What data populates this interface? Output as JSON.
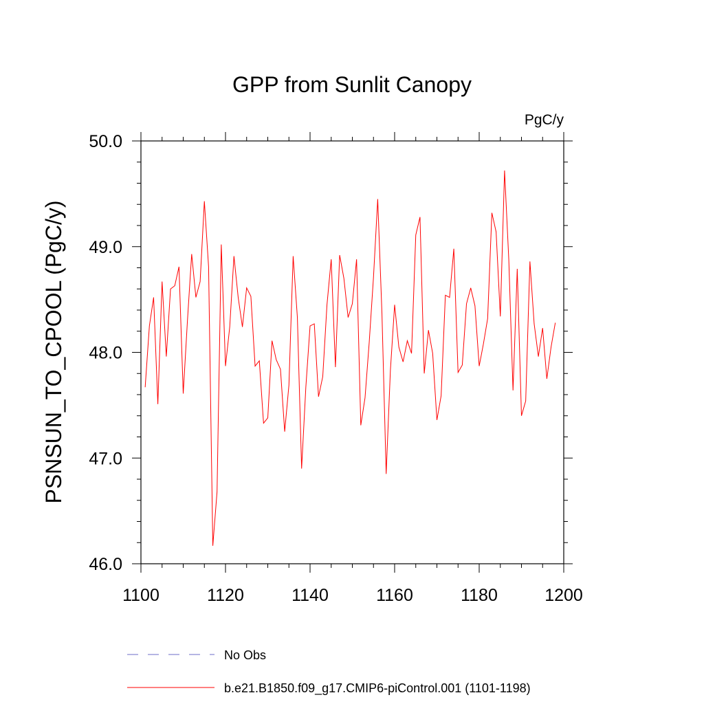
{
  "chart_data": {
    "type": "line",
    "title": "GPP from Sunlit Canopy",
    "units": "PgC/y",
    "ylabel": "PSNSUN_TO_CPOOL  (PgC/y)",
    "xlabel": "",
    "xlim": [
      1100,
      1200
    ],
    "ylim": [
      46.0,
      50.0
    ],
    "xticks": [
      1100,
      1120,
      1140,
      1160,
      1180,
      1200
    ],
    "xtick_labels": [
      "1100",
      "1120",
      "1140",
      "1160",
      "1180",
      "1200"
    ],
    "yticks": [
      46.0,
      47.0,
      48.0,
      49.0,
      50.0
    ],
    "ytick_labels": [
      "46.0",
      "47.0",
      "48.0",
      "49.0",
      "50.0"
    ],
    "legend_position": "bottom",
    "series": [
      {
        "name": "No Obs",
        "style": "dashed",
        "color": "#6b6bc8",
        "x": [],
        "values": []
      },
      {
        "name": "b.e21.B1850.f09_g17.CMIP6-piControl.001 (1101-1198)",
        "style": "solid",
        "color": "#ff0000",
        "x_start": 1101,
        "x_end": 1198,
        "values": [
          47.67,
          48.25,
          48.52,
          47.51,
          48.67,
          47.96,
          48.6,
          48.63,
          48.81,
          47.61,
          48.3,
          48.93,
          48.52,
          48.67,
          49.43,
          48.81,
          46.17,
          46.68,
          49.02,
          47.87,
          48.24,
          48.91,
          48.52,
          48.24,
          48.61,
          48.53,
          47.87,
          47.92,
          47.33,
          47.38,
          48.11,
          47.93,
          47.84,
          47.25,
          47.69,
          48.91,
          48.33,
          46.9,
          47.67,
          48.25,
          48.27,
          47.58,
          47.77,
          48.45,
          48.88,
          47.86,
          48.92,
          48.7,
          48.33,
          48.46,
          48.88,
          47.31,
          47.57,
          48.1,
          48.71,
          49.45,
          48.37,
          46.85,
          47.83,
          48.45,
          48.05,
          47.91,
          48.11,
          47.99,
          49.11,
          49.28,
          47.8,
          48.21,
          47.99,
          47.36,
          47.59,
          48.54,
          48.52,
          48.98,
          47.81,
          47.88,
          48.46,
          48.61,
          48.44,
          47.87,
          48.08,
          48.32,
          49.32,
          49.14,
          48.34,
          49.72,
          48.88,
          47.64,
          48.79,
          47.4,
          47.54,
          48.86,
          48.27,
          47.96,
          48.23,
          47.75,
          48.05,
          48.28
        ]
      }
    ]
  }
}
